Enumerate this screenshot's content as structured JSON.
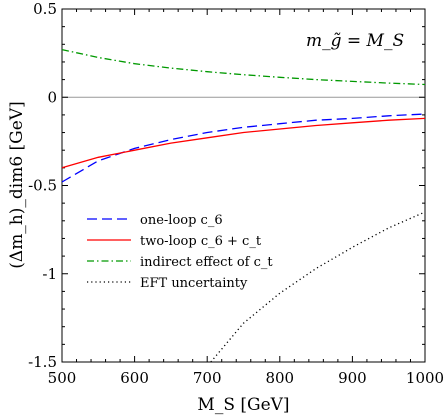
{
  "chart_data": {
    "type": "line",
    "xlabel": "M_S [GeV]",
    "ylabel": "(Δm_h)_dim6 [GeV]",
    "xlim": [
      500,
      1000
    ],
    "ylim": [
      -1.5,
      0.5
    ],
    "x_ticks": [
      500,
      600,
      700,
      800,
      900,
      1000
    ],
    "y_ticks": [
      -1.5,
      -1,
      -0.5,
      0,
      0.5
    ],
    "x_tick_labels": [
      "500",
      "600",
      "700",
      "800",
      "900",
      "1000"
    ],
    "y_tick_labels": [
      "-1.5",
      "-1",
      "-0.5",
      "0",
      "0.5"
    ],
    "annotation": "m_g̃ = M_S",
    "zero_line": true,
    "legend_position": "bottom-left",
    "series": [
      {
        "name": "one-loop c_6",
        "style": "dashed",
        "color": "#0000ff",
        "x": [
          500,
          550,
          600,
          650,
          700,
          750,
          800,
          850,
          900,
          950,
          1000
        ],
        "y": [
          -0.48,
          -0.36,
          -0.29,
          -0.24,
          -0.2,
          -0.17,
          -0.15,
          -0.13,
          -0.12,
          -0.105,
          -0.095
        ]
      },
      {
        "name": "two-loop c_6 + c_t",
        "style": "solid",
        "color": "#ff0000",
        "x": [
          500,
          550,
          600,
          650,
          700,
          750,
          800,
          850,
          900,
          950,
          1000
        ],
        "y": [
          -0.4,
          -0.34,
          -0.3,
          -0.26,
          -0.23,
          -0.2,
          -0.18,
          -0.16,
          -0.145,
          -0.13,
          -0.12
        ]
      },
      {
        "name": "indirect effect of c_t",
        "style": "dashdot",
        "color": "#009900",
        "x": [
          500,
          550,
          600,
          650,
          700,
          750,
          800,
          850,
          900,
          950,
          1000
        ],
        "y": [
          0.27,
          0.225,
          0.19,
          0.165,
          0.145,
          0.128,
          0.113,
          0.1,
          0.09,
          0.08,
          0.072
        ]
      },
      {
        "name": "EFT uncertainty",
        "style": "dotted",
        "color": "#000000",
        "x": [
          705,
          750,
          800,
          850,
          900,
          950,
          1000
        ],
        "y": [
          -1.5,
          -1.28,
          -1.11,
          -0.97,
          -0.85,
          -0.74,
          -0.65
        ]
      }
    ]
  }
}
